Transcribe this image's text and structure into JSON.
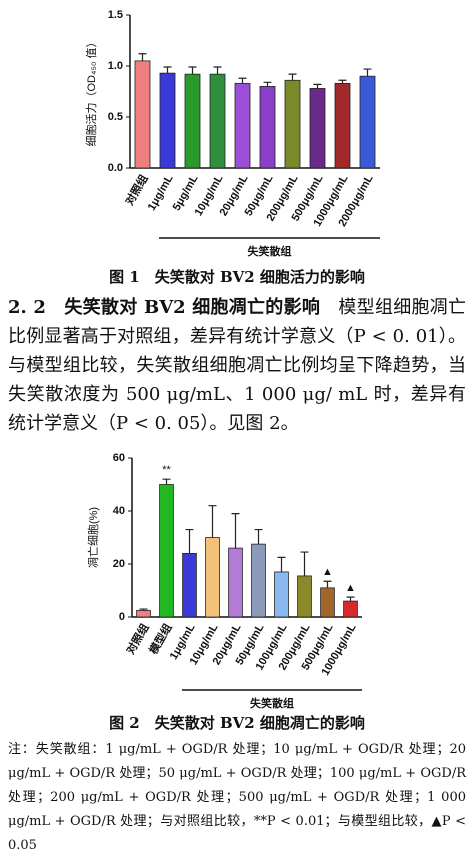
{
  "chart_data": [
    {
      "type": "bar",
      "ylabel": "细胞活力（OD₄₅₀ 值）",
      "categories": [
        "对照组",
        "1μg/mL",
        "5μg/mL",
        "10μg/mL",
        "20μg/mL",
        "50μg/mL",
        "200μg/mL",
        "500μg/mL",
        "1000μg/mL",
        "2000μg/mL"
      ],
      "values": [
        1.05,
        0.93,
        0.92,
        0.92,
        0.83,
        0.8,
        0.86,
        0.78,
        0.83,
        0.9
      ],
      "errors": [
        0.07,
        0.06,
        0.07,
        0.07,
        0.05,
        0.04,
        0.06,
        0.04,
        0.03,
        0.07
      ],
      "colors": [
        "#f08080",
        "#3a3ad8",
        "#2a9a2a",
        "#2f8f3f",
        "#9b4fd6",
        "#8a3fc8",
        "#7a8a2a",
        "#6a2a8a",
        "#a02a2a",
        "#3a5ad8"
      ],
      "group_label": "失笑散组",
      "ylim": [
        0,
        1.5
      ],
      "yticks": [
        {
          "value": 0,
          "label": "0.0"
        },
        {
          "value": 0.5,
          "label": "0.5"
        },
        {
          "value": 1,
          "label": "1.0"
        },
        {
          "value": 1.5,
          "label": "1.5"
        }
      ]
    },
    {
      "type": "bar",
      "ylabel": "凋亡细胞(%)",
      "categories": [
        "对照组",
        "模型组",
        "1μg/mL",
        "10μg/mL",
        "20μg/mL",
        "50μg/mL",
        "100μg/mL",
        "200μg/mL",
        "500μg/mL",
        "1000μg/mL"
      ],
      "values": [
        2.5,
        50,
        24,
        30,
        26,
        27.5,
        17,
        15.5,
        11,
        6
      ],
      "errors": [
        0.5,
        2,
        9,
        12,
        13,
        5.5,
        5.5,
        9,
        2.5,
        1.5
      ],
      "significance": [
        null,
        "**",
        null,
        null,
        null,
        null,
        null,
        null,
        "▲",
        "▲"
      ],
      "colors": [
        "#f08080",
        "#22b822",
        "#3a3ad8",
        "#f2c27a",
        "#b47ad8",
        "#8a9ab8",
        "#8ab8f0",
        "#8a8a2a",
        "#a0662a",
        "#d82a2a"
      ],
      "group_label": "失笑散组",
      "ylim": [
        0,
        60
      ],
      "yticks": [
        0,
        20,
        40,
        60
      ]
    }
  ],
  "figure1_caption": "图 1　失笑散对 BV2 细胞活力的影响",
  "section_heading": "2. 2　失笑散对 BV2 细胞凋亡的影响",
  "section_body": "模型组细胞凋亡比例显著高于对照组，差异有统计学意义（P < 0. 01）。与模型组比较，失笑散组细胞凋亡比例均呈下降趋势，当失笑散浓度为 500 μg/mL、1 000 μg/ mL 时，差异有统计学意义（P < 0. 05）。见图 2。",
  "figure2_caption": "图 2　失笑散对 BV2 细胞凋亡的影响",
  "note": "注：失笑散组：1 μg/mL + OGD/R 处理；10 μg/mL + OGD/R 处理；20 μg/mL + OGD/R 处理；50 μg/mL + OGD/R 处理；100 μg/mL + OGD/R 处理；200 μg/mL + OGD/R 处理；500 μg/mL + OGD/R 处理；1 000 μg/mL + OGD/R 处理；与对照组比较，**P < 0.01；与模型组比较，▲P < 0.05"
}
